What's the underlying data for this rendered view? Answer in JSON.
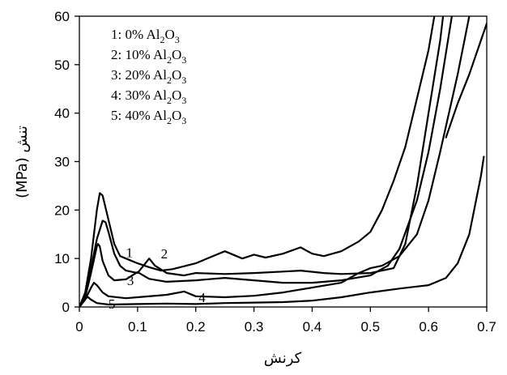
{
  "chart_data": {
    "type": "line",
    "title": "",
    "xlabel": "کرنش",
    "ylabel_unit": "(MPa)",
    "ylabel_word": "تنش",
    "xlim": [
      0,
      0.7
    ],
    "ylim": [
      0,
      60
    ],
    "xticks": [
      0,
      0.1,
      0.2,
      0.3,
      0.4,
      0.5,
      0.6,
      0.7
    ],
    "xtick_labels": [
      "0",
      "0.1",
      "0.2",
      "0.3",
      "0.4",
      "0.5",
      "0.6",
      "0.7"
    ],
    "yticks": [
      0,
      10,
      20,
      30,
      40,
      50,
      60
    ],
    "ytick_labels": [
      "0",
      "10",
      "20",
      "30",
      "40",
      "50",
      "60"
    ],
    "grid": false,
    "legend_position": "top-left",
    "legend": [
      {
        "num": "1: 0% Al",
        "sub1": "2",
        "mid": "O",
        "sub2": "3"
      },
      {
        "num": "2: 10% Al",
        "sub1": "2",
        "mid": "O",
        "sub2": "3"
      },
      {
        "num": "3: 20% Al",
        "sub1": "2",
        "mid": "O",
        "sub2": "3"
      },
      {
        "num": "4: 30% Al",
        "sub1": "2",
        "mid": "O",
        "sub2": "3"
      },
      {
        "num": "5: 40% Al",
        "sub1": "2",
        "mid": "O",
        "sub2": "3"
      }
    ],
    "curve_labels": [
      {
        "text": "1",
        "x": 0.08,
        "y": 10.3
      },
      {
        "text": "2",
        "x": 0.14,
        "y": 10.0
      },
      {
        "text": "3",
        "x": 0.082,
        "y": 4.5
      },
      {
        "text": "4",
        "x": 0.205,
        "y": 1.0
      },
      {
        "text": "5",
        "x": 0.05,
        "y": -0.3
      }
    ],
    "series": [
      {
        "points": [
          [
            0,
            0
          ],
          [
            0.01,
            3
          ],
          [
            0.02,
            10
          ],
          [
            0.03,
            20
          ],
          [
            0.035,
            23.5
          ],
          [
            0.04,
            23
          ],
          [
            0.05,
            18
          ],
          [
            0.06,
            13
          ],
          [
            0.07,
            10.5
          ],
          [
            0.08,
            10
          ],
          [
            0.09,
            9.5
          ],
          [
            0.1,
            9
          ],
          [
            0.12,
            8.2
          ],
          [
            0.14,
            7.5
          ],
          [
            0.16,
            7.8
          ],
          [
            0.2,
            9
          ],
          [
            0.25,
            11.5
          ],
          [
            0.28,
            10
          ],
          [
            0.3,
            10.8
          ],
          [
            0.32,
            10.2
          ],
          [
            0.35,
            11
          ],
          [
            0.38,
            12.3
          ],
          [
            0.4,
            11
          ],
          [
            0.42,
            10.5
          ],
          [
            0.45,
            11.5
          ],
          [
            0.48,
            13.5
          ],
          [
            0.5,
            15.5
          ],
          [
            0.52,
            20
          ],
          [
            0.54,
            26
          ],
          [
            0.56,
            33
          ],
          [
            0.58,
            43
          ],
          [
            0.6,
            53
          ],
          [
            0.61,
            60
          ]
        ]
      },
      {
        "points": [
          [
            0,
            0
          ],
          [
            0.01,
            2.5
          ],
          [
            0.02,
            8
          ],
          [
            0.03,
            14
          ],
          [
            0.04,
            17.8
          ],
          [
            0.045,
            17.5
          ],
          [
            0.05,
            15.5
          ],
          [
            0.06,
            11
          ],
          [
            0.07,
            8.5
          ],
          [
            0.08,
            7.5
          ],
          [
            0.1,
            7
          ],
          [
            0.12,
            10
          ],
          [
            0.13,
            8.5
          ],
          [
            0.15,
            7
          ],
          [
            0.18,
            6.5
          ],
          [
            0.2,
            7
          ],
          [
            0.25,
            6.8
          ],
          [
            0.3,
            7
          ],
          [
            0.35,
            7.3
          ],
          [
            0.38,
            7.5
          ],
          [
            0.42,
            7
          ],
          [
            0.45,
            6.8
          ],
          [
            0.5,
            7
          ],
          [
            0.54,
            8
          ],
          [
            0.56,
            13
          ],
          [
            0.58,
            25
          ],
          [
            0.6,
            40
          ],
          [
            0.62,
            55
          ],
          [
            0.625,
            60
          ]
        ]
      },
      {
        "points": [
          [
            0,
            0
          ],
          [
            0.01,
            2
          ],
          [
            0.02,
            7
          ],
          [
            0.03,
            12.5
          ],
          [
            0.032,
            13
          ],
          [
            0.035,
            12.5
          ],
          [
            0.04,
            9.5
          ],
          [
            0.05,
            6.5
          ],
          [
            0.06,
            5.5
          ],
          [
            0.08,
            5.7
          ],
          [
            0.1,
            7.2
          ],
          [
            0.12,
            5.8
          ],
          [
            0.15,
            5.2
          ],
          [
            0.2,
            5.5
          ],
          [
            0.25,
            6
          ],
          [
            0.3,
            5.5
          ],
          [
            0.35,
            5
          ],
          [
            0.4,
            5
          ],
          [
            0.45,
            5.5
          ],
          [
            0.5,
            6.5
          ],
          [
            0.53,
            8.5
          ],
          [
            0.55,
            12
          ],
          [
            0.58,
            22
          ],
          [
            0.6,
            32
          ],
          [
            0.62,
            45
          ],
          [
            0.64,
            60
          ]
        ]
      },
      {
        "points": [
          [
            0,
            0
          ],
          [
            0.01,
            1.5
          ],
          [
            0.02,
            4
          ],
          [
            0.025,
            5
          ],
          [
            0.03,
            4.5
          ],
          [
            0.04,
            3
          ],
          [
            0.05,
            2.2
          ],
          [
            0.08,
            1.8
          ],
          [
            0.1,
            2
          ],
          [
            0.15,
            2.5
          ],
          [
            0.18,
            3.2
          ],
          [
            0.2,
            2.2
          ],
          [
            0.25,
            2
          ],
          [
            0.3,
            2.3
          ],
          [
            0.35,
            3
          ],
          [
            0.4,
            4
          ],
          [
            0.45,
            5
          ],
          [
            0.48,
            7
          ],
          [
            0.5,
            8
          ],
          [
            0.52,
            8.5
          ],
          [
            0.55,
            10.5
          ],
          [
            0.58,
            15
          ],
          [
            0.6,
            22
          ],
          [
            0.62,
            32
          ],
          [
            0.65,
            48
          ],
          [
            0.67,
            60
          ]
        ]
      },
      {
        "points": [
          [
            0,
            0
          ],
          [
            0.005,
            0.8
          ],
          [
            0.01,
            1.8
          ],
          [
            0.015,
            2
          ],
          [
            0.02,
            1.5
          ],
          [
            0.03,
            0.8
          ],
          [
            0.05,
            0.5
          ],
          [
            0.1,
            0.6
          ],
          [
            0.15,
            0.7
          ],
          [
            0.2,
            0.6
          ],
          [
            0.25,
            0.8
          ],
          [
            0.3,
            0.9
          ],
          [
            0.35,
            1
          ],
          [
            0.4,
            1.3
          ],
          [
            0.45,
            2
          ],
          [
            0.5,
            3
          ],
          [
            0.55,
            3.8
          ],
          [
            0.6,
            4.5
          ],
          [
            0.63,
            6
          ],
          [
            0.65,
            9
          ],
          [
            0.67,
            15
          ],
          [
            0.68,
            21
          ],
          [
            0.69,
            27
          ],
          [
            0.695,
            31
          ]
        ]
      },
      {
        "points": [
          [
            0.63,
            35
          ],
          [
            0.65,
            42
          ],
          [
            0.67,
            48
          ],
          [
            0.69,
            55
          ],
          [
            0.7,
            58.5
          ]
        ]
      }
    ]
  }
}
